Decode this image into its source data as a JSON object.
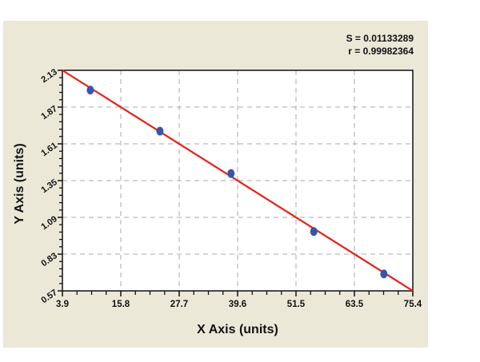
{
  "chart_data": {
    "type": "scatter",
    "title": "",
    "xlabel": "X Axis (units)",
    "ylabel": "Y Axis (units)",
    "xlim": [
      3.9,
      75.4
    ],
    "ylim": [
      0.57,
      2.13
    ],
    "x_ticks": [
      "3.9",
      "15.8",
      "27.7",
      "39.6",
      "51.5",
      "63.5",
      "75.4"
    ],
    "y_ticks": [
      "0.57",
      "0.83",
      "1.09",
      "1.35",
      "1.61",
      "1.87",
      "2.13"
    ],
    "grid": true,
    "legend": null,
    "annotations": [
      "S = 0.01133289",
      "r = 0.99982364"
    ],
    "series": [
      {
        "name": "data points",
        "type": "scatter",
        "color": "#3a55a8",
        "x": [
          9.6,
          23.8,
          38.3,
          55.2,
          69.5
        ],
        "y": [
          1.99,
          1.7,
          1.4,
          0.99,
          0.69
        ]
      },
      {
        "name": "fit line",
        "type": "line",
        "color": "#e8201a",
        "x": [
          3.9,
          75.4
        ],
        "y": [
          2.13,
          0.57
        ]
      }
    ]
  },
  "stats": {
    "s_label": "S = 0.01133289",
    "r_label": "r = 0.99982364"
  },
  "axes": {
    "x_title": "X Axis (units)",
    "y_title": "Y Axis (units)"
  },
  "colors": {
    "panel_bg": "#ebe8d8",
    "plot_bg": "#ffffff",
    "grid": "#a8a8a8",
    "fit_line": "#e8201a",
    "points": "#3a55a8"
  }
}
